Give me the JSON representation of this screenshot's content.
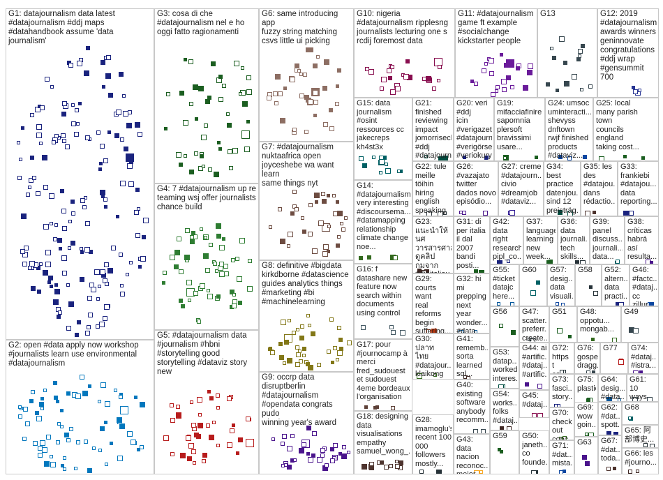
{
  "groups": [
    {
      "id": "G1",
      "text": "G1: datajournalism data latest\n#datajournalism #ddj maps\n#datahandbook assume 'data journalism'",
      "color": "#1a237e",
      "n": 170
    },
    {
      "id": "G2",
      "text": "G2: open #data apply now workshop\n#journalists learn use environmental\n#datajournalism",
      "color": "#0277bd",
      "n": 70
    },
    {
      "id": "G3",
      "text": "G3: cosa di che\n#datajournalism nel e ho\noggi fatto ragionamenti",
      "color": "#1b5e20",
      "n": 48
    },
    {
      "id": "G4",
      "text": "G4: 7 #datajournalism up re\nteaming wsj offer journalists\nchance build",
      "color": "#2e7d32",
      "n": 60
    },
    {
      "id": "G5",
      "text": "G5: #datajournalism data\n#journalism #hbni\n#storytelling good\nstorytelling #dataviz story\nnew",
      "color": "#b71c1c",
      "n": 42
    },
    {
      "id": "G6",
      "text": "G6: same introducing app\nfuzzy string matching\ncsvs little ui picking",
      "color": "#8d6e63",
      "n": 40
    },
    {
      "id": "G7",
      "text": "G7: #datajournalism\nnuktaafrica open\njoyceshebe wa want learn\nsame things nyt",
      "color": "#6d4c41",
      "n": 34
    },
    {
      "id": "G8",
      "text": "G8: definitive #bigdata\nkirkdborne #datascience\nguides analytics things\n#marketing #bi\n#machinelearning",
      "color": "#827717",
      "n": 40
    },
    {
      "id": "G9",
      "text": "G9: occrp data\ndisruptberlin\n#datajournalism\n#opendata congrats pudo\nwinning year's award",
      "color": "#4a148c",
      "n": 34
    },
    {
      "id": "G10",
      "text": "G10: nigeria\n#datajournalism ripplesng\njournalists lecturing one s\nrcdij foremost data",
      "color": "#880e4f",
      "n": 22
    },
    {
      "id": "G11",
      "text": "G11: #datajournalism\ngame ft example\n#socialchange\nkickstarter people",
      "color": "#6a1b9a",
      "n": 22
    },
    {
      "id": "G12",
      "text": "G12: 2019\n#datajournalism\nawards winners\ngeninnovate\ncongratulations\n#ddj wrap\n#gensummit\n700",
      "color": "#283593",
      "n": 4
    },
    {
      "id": "G13",
      "text": "G13",
      "color": "#37474f",
      "n": 14
    },
    {
      "id": "G14",
      "text": "G14:\n#datajournalism\nvery interesting\n#discoursema...\n#datamapping\nrelationship\nclimate change\nnoe...",
      "color": "#33691e",
      "n": 4
    },
    {
      "id": "G15",
      "text": "G15: data\njournalism\n#osint\nressources cc\njakecreps\nkh4st3x",
      "color": "#006064",
      "n": 12
    },
    {
      "id": "G16",
      "text": "G16: f\ndatashare new\nfeature now\nsearch within\ndocuments\nusing control",
      "color": "#455a64",
      "n": 4
    },
    {
      "id": "G17",
      "text": "G17: pour\n#journocamp à\nmerci\nfred_sudouest\net sudouest\n4eme bordeaux\nl'organisation",
      "color": "#5d4037",
      "n": 4
    },
    {
      "id": "G18",
      "text": "G18: designing\ndata\nvisualisations\nempathy\nsamuel_wong_...",
      "color": "#4e342e",
      "n": 12
    },
    {
      "id": "G19",
      "text": "G19:\nmifacciafinire\nsapomnia\nplersoft\nbravissimi\nusare...",
      "color": "#1b5e20",
      "n": 3
    },
    {
      "id": "G20",
      "text": "G20: veri #ddj\nicin\n#verigazete...\n#datajournal...\n#verigörsell...\n#veriokurya...",
      "color": "#1a237e",
      "n": 3
    },
    {
      "id": "G21",
      "text": "G21: finished\nreviewing\nimpact\njomorrisecho\n#ddj\n#datajournal...",
      "color": "#004d40",
      "n": 3
    },
    {
      "id": "G22",
      "text": "G22: tule\nmeille\ntöihin\nhiring\nenglish\nspeaking\ndeveloper...",
      "color": "#263238",
      "n": 3
    },
    {
      "id": "G23",
      "text": "G23:\nแนะนำให้\nนศ\nวารสารศาสตร์\nดูคลิป\nกมจาก\n#digitaljou...",
      "color": "#3e2723",
      "n": 3
    },
    {
      "id": "G24",
      "text": "G24: umsoc\numinteracti...\nshevyss dnftown\nrwjf finished\nproducts\n#dataviz...",
      "color": "#0d47a1",
      "n": 3
    },
    {
      "id": "G25",
      "text": "G25: local\nmany parish\ntown\ncouncils\nengland\ntaking cost...",
      "color": "#1b5e20",
      "n": 3
    },
    {
      "id": "G26",
      "text": "G26:\n#vazajato\ntwitter\ndados novo\nepisódio...",
      "color": "#4a148c",
      "n": 3
    },
    {
      "id": "G27",
      "text": "G27: creme\n#datajourn...\ncivio\n#dreamjob\n#dataviz...",
      "color": "#311b92",
      "n": 3
    },
    {
      "id": "G28",
      "text": "G28:\nimamoglu's\nrecent 100\n000\nfollowers\nmostly...",
      "color": "#263238",
      "n": 3
    },
    {
      "id": "G29",
      "text": "G29:\ncourts want\nreal\nreforms\nbegin\nsuffering...",
      "color": "#bf360c",
      "n": 3
    },
    {
      "id": "G30",
      "text": "G30: ปลาท\nไทย\n#datajour...\nklaikong",
      "color": "#33691e",
      "n": 2
    },
    {
      "id": "G31",
      "text": "G31: di\nper italia\nil dal\n2007\nbandi\nposti...",
      "color": "#1b5e20",
      "n": 2
    },
    {
      "id": "G32",
      "text": "G32: hi mi\nprepping\nnext year\nwonder...\n#data\n#datasci...",
      "color": "#01579b",
      "n": 2
    },
    {
      "id": "G33",
      "text": "G33:\nfrankiebi\n#datajou...\ndata\nreporting...",
      "color": "#1a237e",
      "n": 2
    },
    {
      "id": "G34",
      "text": "G34: best\npractice\ndatenjou...\nsind 12\npreisträg...",
      "color": "#004d40",
      "n": 2
    },
    {
      "id": "G35",
      "text": "G35: les\ndes\n#datajou...\ndans\nrédactio...",
      "color": "#4e342e",
      "n": 2
    },
    {
      "id": "G36",
      "text": "G36:\ndata\njournali...\ntech\nskills...",
      "color": "#263238",
      "n": 2
    },
    {
      "id": "G37",
      "text": "G37:\nlanguage\nlearning\nnew\nweek...",
      "color": "#1b5e20",
      "n": 2
    },
    {
      "id": "G38",
      "text": "G38:\ncríticas\nhabrá\nasí\nresulta...",
      "color": "#4a148c",
      "n": 2
    },
    {
      "id": "G39",
      "text": "G39:\npanel\ndiscuss...\njournali...\ndata...",
      "color": "#006064",
      "n": 2
    },
    {
      "id": "G40",
      "text": "G40:\nexisting\nsoftware\nanybody\nrecomm...",
      "color": "#37474f",
      "n": 2
    },
    {
      "id": "G41",
      "text": "G41:\nrememb...\nsorta\nlearned\nsql...",
      "color": "#3e2723",
      "n": 2
    },
    {
      "id": "G42",
      "text": "G42:\ndata\nright\nresearch\npipl_co...",
      "color": "#1a237e",
      "n": 2
    },
    {
      "id": "G43",
      "text": "G43:\ndata\nnacion\nreconoc...\nmejor...",
      "color": "#f9a825",
      "n": 2
    },
    {
      "id": "G44",
      "text": "G44: ai\n#artific...\n#dataj...\n#artific...",
      "color": "#4a148c",
      "n": 2
    },
    {
      "id": "G45",
      "text": "G45:\n#dataj...",
      "color": "#880e4f",
      "n": 2
    },
    {
      "id": "G46",
      "text": "G46:\n#factc...\n#dataj...\ncc zillur",
      "color": "#0d47a1",
      "n": 2
    },
    {
      "id": "G47",
      "text": "G47:\nscatter...\npreferr...\ncreate...",
      "color": "#263238",
      "n": 2
    },
    {
      "id": "G48",
      "text": "G48:\noppotu...\nmongab...",
      "color": "#33691e",
      "n": 2
    },
    {
      "id": "G49",
      "text": "G49",
      "color": "#37474f",
      "n": 2
    },
    {
      "id": "G50",
      "text": "G50:\njaneth...\nco\nfounde...",
      "color": "#263238",
      "n": 2
    },
    {
      "id": "G51",
      "text": "G51",
      "color": "#1b5e20",
      "n": 2
    },
    {
      "id": "G52",
      "text": "G52:\naltern...\ndata\npracti...",
      "color": "#1a237e",
      "n": 2
    },
    {
      "id": "G53",
      "text": "G53:\ndatap...\nworked\ninteres...",
      "color": "#004d40",
      "n": 2
    },
    {
      "id": "G54",
      "text": "G54:\nworks...\nfolks\n#dataj...",
      "color": "#3e2723",
      "n": 2
    },
    {
      "id": "G55",
      "text": "G55:\n#ticket\ndatajc\nhere...",
      "color": "#01579b",
      "n": 2
    },
    {
      "id": "G56",
      "text": "G56",
      "color": "#1b5e20",
      "n": 2
    },
    {
      "id": "G57",
      "text": "G57:\ndesig...\ndata\nvisuali...",
      "color": "#0d47a1",
      "n": 2
    },
    {
      "id": "G58",
      "text": "G58",
      "color": "#263238",
      "n": 2
    },
    {
      "id": "G59",
      "text": "G59",
      "color": "#1b5e20",
      "n": 2
    },
    {
      "id": "G60",
      "text": "G60",
      "color": "#006064",
      "n": 2
    },
    {
      "id": "G61",
      "text": "G61: 10\nways\nuse...",
      "color": "#37474f",
      "n": 2
    },
    {
      "id": "G62",
      "text": "G62:\n#dat...\nspott...",
      "color": "#1a237e",
      "n": 2
    },
    {
      "id": "G63",
      "text": "G63",
      "color": "#4a148c",
      "n": 2
    },
    {
      "id": "G64",
      "text": "G64:\ndesig...\n#data...",
      "color": "#01579b",
      "n": 2
    },
    {
      "id": "G65",
      "text": "G65: 阿\n部博史...",
      "color": "#263238",
      "n": 2
    },
    {
      "id": "G66",
      "text": "G66: les\n#journo...",
      "color": "#3e2723",
      "n": 2
    },
    {
      "id": "G67",
      "text": "G67:\n#dat...\ntoda...",
      "color": "#4e342e",
      "n": 2
    },
    {
      "id": "G68",
      "text": "G68",
      "color": "#006064",
      "n": 2
    },
    {
      "id": "G69",
      "text": "G69:\nwow\ngoin...",
      "color": "#1b5e20",
      "n": 2
    },
    {
      "id": "G70",
      "text": "G70:\ncheck\nout\nconc...",
      "color": "#33691e",
      "n": 2
    },
    {
      "id": "G71",
      "text": "G71:\n#dat...\nmista...",
      "color": "#0d47a1",
      "n": 2
    },
    {
      "id": "G72",
      "text": "G72:\nhttps t\nco 数...",
      "color": "#263238",
      "n": 2
    },
    {
      "id": "G73",
      "text": "G73:\nfasci...\nstory...",
      "color": "#1a237e",
      "n": 2
    },
    {
      "id": "G74",
      "text": "G74:\n#dataj...\n#istra...",
      "color": "#4a148c",
      "n": 2
    },
    {
      "id": "G75",
      "text": "G75:\nplastic",
      "color": "#1b5e20",
      "n": 2
    },
    {
      "id": "G76",
      "text": "G76:\ngospel\ndragg...",
      "color": "#37474f",
      "n": 2
    },
    {
      "id": "G77",
      "text": "G77",
      "color": "#b71c1c",
      "n": 2
    }
  ]
}
